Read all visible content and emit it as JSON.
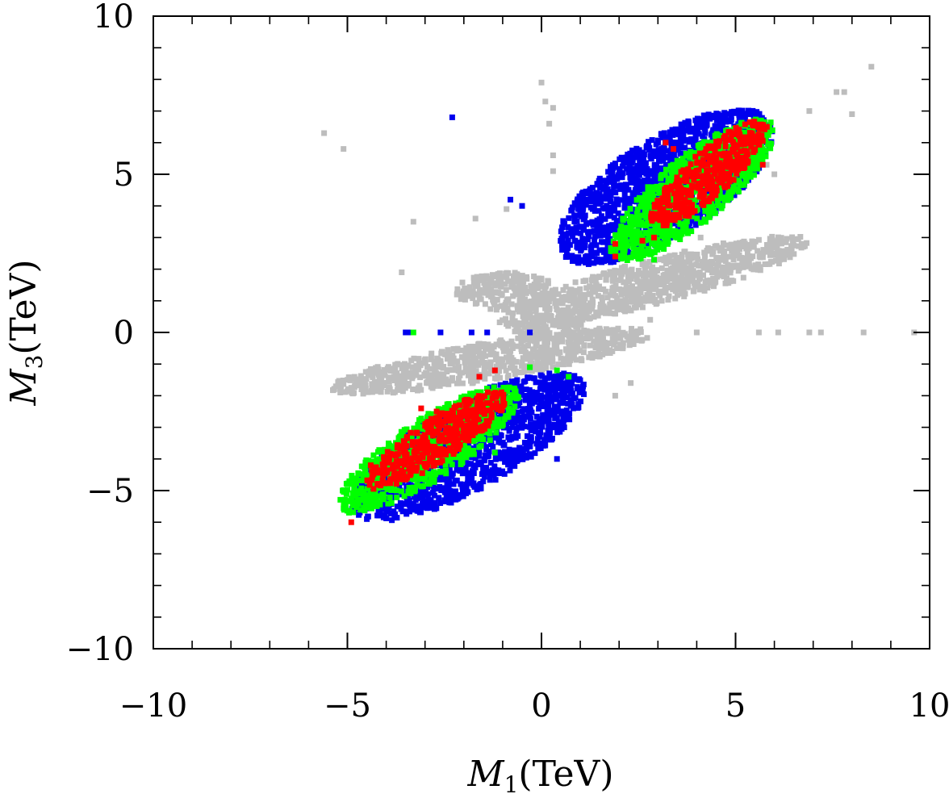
{
  "chart_data": {
    "type": "scatter",
    "title": "",
    "xlabel": {
      "symbol": "M",
      "sub": "1",
      "unit": "(TeV)"
    },
    "ylabel": {
      "symbol": "M",
      "sub": "3",
      "unit": "(TeV)"
    },
    "xlim": [
      -10,
      10
    ],
    "ylim": [
      -10,
      10
    ],
    "xticks": [
      {
        "value": -10,
        "label": "−10"
      },
      {
        "value": -5,
        "label": "−5"
      },
      {
        "value": 0,
        "label": "0"
      },
      {
        "value": 5,
        "label": "5"
      },
      {
        "value": 10,
        "label": "10"
      }
    ],
    "yticks": [
      {
        "value": -10,
        "label": "−10"
      },
      {
        "value": -5,
        "label": "−5"
      },
      {
        "value": 0,
        "label": "0"
      },
      {
        "value": 5,
        "label": "5"
      },
      {
        "value": 10,
        "label": "10"
      }
    ],
    "minor_tick_step": 1,
    "grid": false,
    "legend": "none",
    "series": [
      {
        "color": "#bdbdbd",
        "regions": [
          {
            "cx": 2.9,
            "cy": 1.6,
            "rx": 4.2,
            "ry": 0.7,
            "angle": 18
          },
          {
            "cx": -1.3,
            "cy": -0.9,
            "rx": 4.2,
            "ry": 0.6,
            "angle": 12
          },
          {
            "cx": 0.2,
            "cy": 0.1,
            "rx": 0.9,
            "ry": 0.45,
            "angle": 0
          },
          {
            "cx": -0.9,
            "cy": 1.3,
            "rx": 1.3,
            "ry": 0.6,
            "angle": 0
          }
        ],
        "outliers": [
          [
            -5.6,
            6.3
          ],
          [
            -5.1,
            5.8
          ],
          [
            0.0,
            7.9
          ],
          [
            0.1,
            7.3
          ],
          [
            0.3,
            7.1
          ],
          [
            0.2,
            6.6
          ],
          [
            -0.9,
            3.9
          ],
          [
            -1.7,
            3.6
          ],
          [
            -3.3,
            3.5
          ],
          [
            -3.6,
            1.9
          ],
          [
            -5.1,
            -1.6
          ],
          [
            0.3,
            5.6
          ],
          [
            0.3,
            5.1
          ],
          [
            6.0,
            5.0
          ],
          [
            5.8,
            5.3
          ],
          [
            4.1,
            3.0
          ],
          [
            6.7,
            2.8
          ],
          [
            7.6,
            7.6
          ],
          [
            7.8,
            7.6
          ],
          [
            8.5,
            8.4
          ],
          [
            6.9,
            7.0
          ],
          [
            8.0,
            6.9
          ],
          [
            4.0,
            0.0
          ],
          [
            5.6,
            0.0
          ],
          [
            6.1,
            0.0
          ],
          [
            6.9,
            0.0
          ],
          [
            7.2,
            0.0
          ],
          [
            8.3,
            0.0
          ],
          [
            9.6,
            0.0
          ],
          [
            2.8,
            0.4
          ],
          [
            3.1,
            1.0
          ],
          [
            1.9,
            -2.0
          ],
          [
            2.3,
            -1.6
          ],
          [
            4.6,
            2.6
          ]
        ]
      },
      {
        "color": "#0000ee",
        "regions": [
          {
            "cx": 3.2,
            "cy": 4.6,
            "rx": 3.4,
            "ry": 1.45,
            "angle": 40
          },
          {
            "cx": -1.9,
            "cy": -3.6,
            "rx": 3.6,
            "ry": 1.3,
            "angle": 36
          }
        ],
        "outliers": [
          [
            -2.3,
            6.8
          ],
          [
            -1.4,
            0.0
          ],
          [
            -2.6,
            0.0
          ],
          [
            -3.5,
            0.0
          ],
          [
            -3.4,
            0.0
          ],
          [
            -1.8,
            0.0
          ],
          [
            -0.3,
            0.0
          ],
          [
            0.4,
            -4.0
          ],
          [
            -0.5,
            4.0
          ],
          [
            -0.8,
            4.2
          ],
          [
            1.0,
            3.8
          ],
          [
            1.5,
            2.6
          ]
        ]
      },
      {
        "color": "#00ff00",
        "regions": [
          {
            "cx": 3.9,
            "cy": 4.5,
            "rx": 2.95,
            "ry": 0.95,
            "angle": 47
          },
          {
            "cx": -2.9,
            "cy": -3.7,
            "rx": 2.95,
            "ry": 0.9,
            "angle": 40
          }
        ],
        "outliers": [
          [
            -3.3,
            0.0
          ],
          [
            -0.3,
            -1.1
          ],
          [
            0.4,
            -1.2
          ],
          [
            0.7,
            -1.4
          ],
          [
            1.9,
            2.7
          ],
          [
            2.9,
            2.3
          ],
          [
            -1.2,
            -3.8
          ],
          [
            -2.0,
            -3.5
          ]
        ]
      },
      {
        "color": "#ff0000",
        "regions": [
          {
            "cx": 4.3,
            "cy": 5.0,
            "rx": 2.2,
            "ry": 0.62,
            "angle": 49
          },
          {
            "cx": -2.7,
            "cy": -3.4,
            "rx": 2.3,
            "ry": 0.62,
            "angle": 40
          }
        ],
        "outliers": [
          [
            3.2,
            6.0
          ],
          [
            3.4,
            5.8
          ],
          [
            5.7,
            5.3
          ],
          [
            1.9,
            2.8
          ],
          [
            1.9,
            2.4
          ],
          [
            2.9,
            3.0
          ],
          [
            2.6,
            2.9
          ],
          [
            -1.6,
            -1.4
          ],
          [
            -1.2,
            -1.2
          ],
          [
            -2.7,
            -2.5
          ],
          [
            -3.1,
            -2.4
          ],
          [
            -4.4,
            -4.2
          ],
          [
            -4.9,
            -6.0
          ]
        ]
      }
    ]
  }
}
